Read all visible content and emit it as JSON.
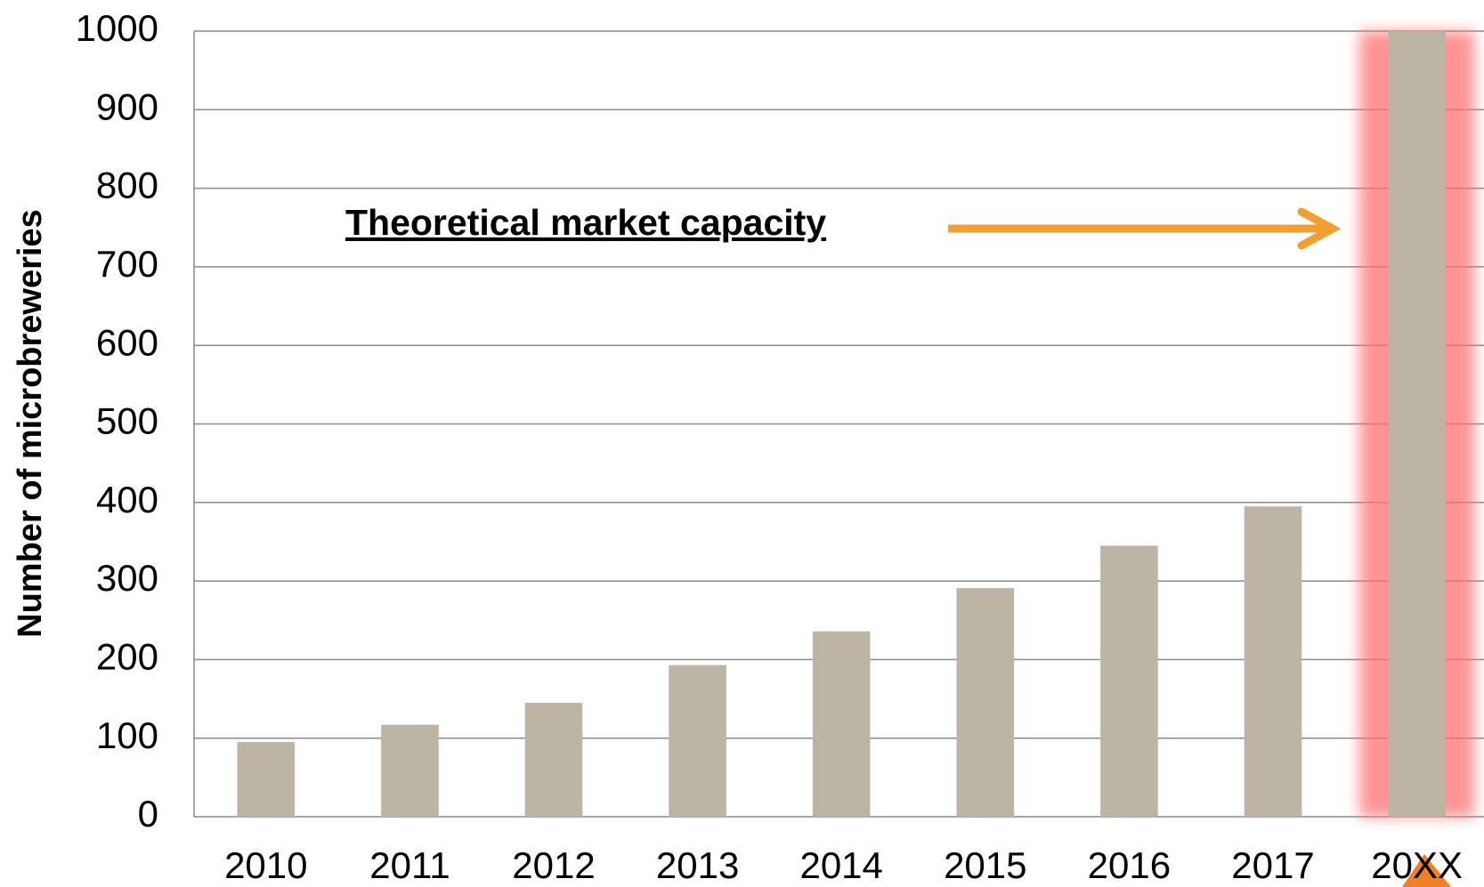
{
  "chart_data": {
    "type": "bar",
    "y_axis_label": "Number of microbreweries",
    "annotation": "Theoretical market capacity",
    "categories": [
      "2010",
      "2011",
      "2012",
      "2013",
      "2014",
      "2015",
      "2016",
      "2017",
      "20XX"
    ],
    "values": [
      95,
      117,
      145,
      193,
      236,
      291,
      345,
      395,
      1000
    ],
    "color": "#bcb5a3",
    "ylim": [
      0,
      1000
    ],
    "yticks": [
      0,
      100,
      200,
      300,
      400,
      500,
      600,
      700,
      800,
      900,
      1000
    ],
    "grid": true
  }
}
